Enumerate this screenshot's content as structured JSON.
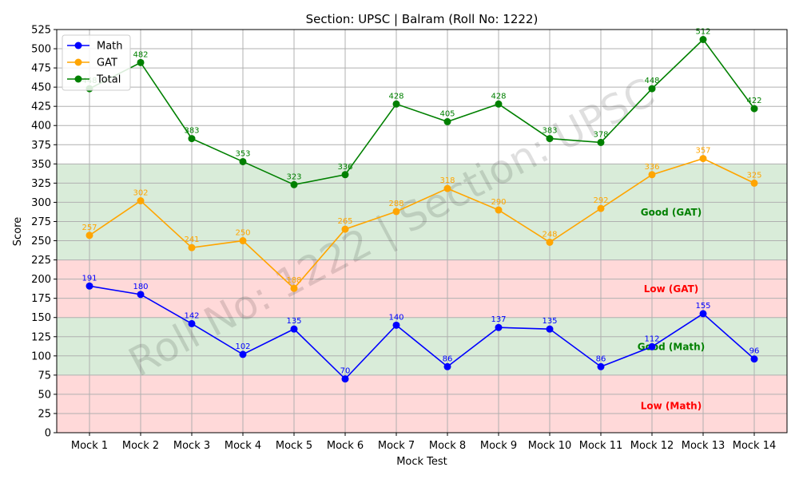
{
  "chart_data": {
    "type": "line",
    "title": "Section: UPSC | Balram (Roll No: 1222)",
    "xlabel": "Mock Test",
    "ylabel": "Score",
    "categories": [
      "Mock 1",
      "Mock 2",
      "Mock 3",
      "Mock 4",
      "Mock 5",
      "Mock 6",
      "Mock 7",
      "Mock 8",
      "Mock 9",
      "Mock 10",
      "Mock 11",
      "Mock 12",
      "Mock 13",
      "Mock 14"
    ],
    "ylim": [
      0,
      525
    ],
    "yticks": [
      0,
      25,
      50,
      75,
      100,
      125,
      150,
      175,
      200,
      225,
      250,
      275,
      300,
      325,
      350,
      375,
      400,
      425,
      450,
      475,
      500,
      525
    ],
    "grid": true,
    "legend_position": "top-left",
    "series": [
      {
        "name": "Math",
        "color": "#0000ff",
        "values": [
          191,
          180,
          142,
          102,
          135,
          70,
          140,
          86,
          137,
          135,
          86,
          112,
          155,
          96
        ]
      },
      {
        "name": "GAT",
        "color": "#ffa500",
        "values": [
          257,
          302,
          241,
          250,
          188,
          265,
          288,
          318,
          290,
          248,
          292,
          336,
          357,
          325
        ]
      },
      {
        "name": "Total",
        "color": "#008000",
        "values": [
          448,
          482,
          383,
          353,
          323,
          336,
          428,
          405,
          428,
          383,
          378,
          448,
          512,
          422
        ]
      }
    ],
    "bands": [
      {
        "label": "Low (Math)",
        "from": 0,
        "to": 75,
        "color": "#ffd9d9",
        "text_color": "#ff0000",
        "label_y": 35
      },
      {
        "label": "Good (Math)",
        "from": 75,
        "to": 150,
        "color": "#d9ecd9",
        "text_color": "#008000",
        "label_y": 112
      },
      {
        "label": "Low (GAT)",
        "from": 150,
        "to": 225,
        "color": "#ffd9d9",
        "text_color": "#ff0000",
        "label_y": 187
      },
      {
        "label": "Good (GAT)",
        "from": 225,
        "to": 350,
        "color": "#d9ecd9",
        "text_color": "#008000",
        "label_y": 287
      }
    ],
    "watermark": "Roll No: 1222 | Section: UPSC"
  }
}
